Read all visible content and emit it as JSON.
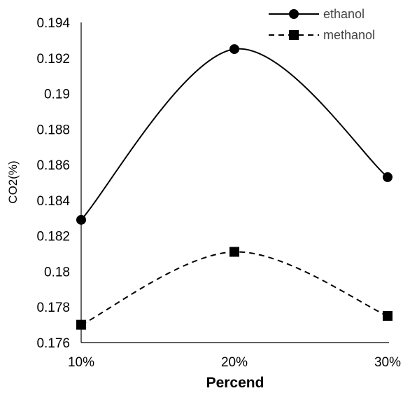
{
  "chart_data": {
    "type": "line",
    "xlabel": "Percend",
    "ylabel": "CO2(%)",
    "categories": [
      "10%",
      "20%",
      "30%"
    ],
    "ylim": [
      0.176,
      0.194
    ],
    "yticks": [
      "0.176",
      "0.178",
      "0.18",
      "0.182",
      "0.184",
      "0.186",
      "0.188",
      "0.19",
      "0.192",
      "0.194"
    ],
    "smooth": true,
    "grid": false,
    "legend_position": "top-right",
    "series": [
      {
        "name": "ethanol",
        "values": [
          0.1829,
          0.1925,
          0.1853
        ],
        "marker": "circle",
        "line": "solid",
        "color": "#000000"
      },
      {
        "name": "methanol",
        "values": [
          0.177,
          0.1811,
          0.1775
        ],
        "marker": "square",
        "line": "dashed",
        "color": "#000000"
      }
    ]
  }
}
